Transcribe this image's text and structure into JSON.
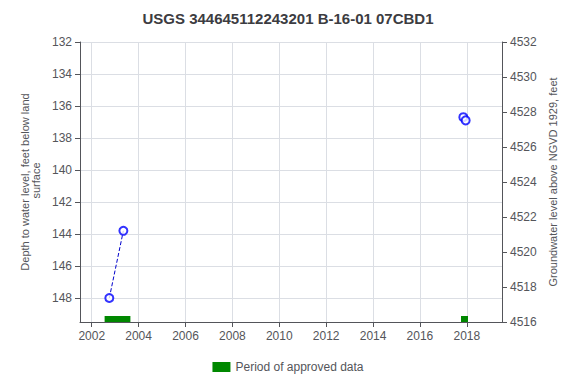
{
  "chart_data": {
    "type": "line",
    "title": "USGS 344645112243201 B-16-01 07CBD1",
    "ylabel": "Depth to water level, feet below land\n surface",
    "y2label": "Groundwater level above NGVD 1929, feet",
    "x": [
      2002.75,
      2003.35,
      2017.85,
      2017.95
    ],
    "series": [
      {
        "type": "line",
        "color": "#0000cc",
        "line_style": "dashed",
        "values": [
          148.0,
          143.8,
          null,
          null
        ]
      },
      {
        "type": "line",
        "color": "#0000cc",
        "line_style": "dashed",
        "values": [
          null,
          null,
          136.7,
          136.9
        ]
      },
      {
        "type": "scatter",
        "color": "#0000ff",
        "marker": "open circle",
        "values": [
          148.0,
          143.8,
          136.7,
          136.9
        ]
      },
      {
        "type": "band",
        "name": "Period of approved data",
        "color": "#008800",
        "x_ranges": [
          [
            2002.55,
            2003.65
          ],
          [
            2017.75,
            2018.05
          ]
        ]
      }
    ],
    "xlim": [
      2001.5,
      2019.5
    ],
    "xticks": [
      2002,
      2004,
      2006,
      2008,
      2010,
      2012,
      2014,
      2016,
      2018
    ],
    "ylim": [
      149.5,
      132
    ],
    "yticks": [
      132,
      134,
      136,
      138,
      140,
      142,
      144,
      146,
      148
    ],
    "y2lim": [
      4516,
      4532
    ],
    "y2ticks": [
      4532,
      4530,
      4528,
      4526,
      4524,
      4522,
      4520,
      4518,
      4516
    ],
    "grid": true,
    "legend": "bottom"
  }
}
